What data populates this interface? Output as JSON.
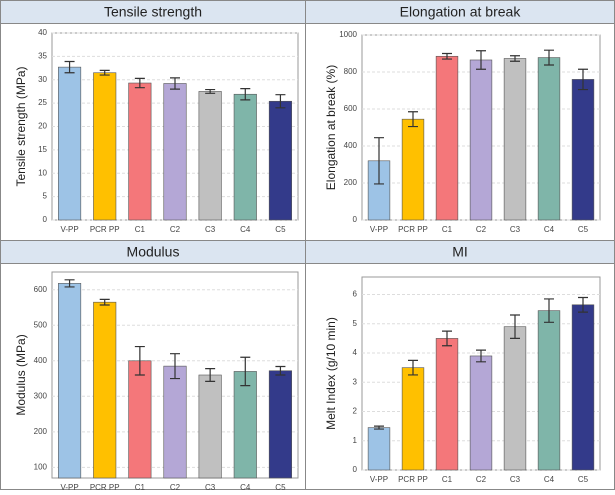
{
  "chart_data": [
    {
      "type": "bar",
      "title": "Tensile strength",
      "y_label": "Tensile strength (MPa)",
      "categories": [
        "V-PP",
        "PCR PP",
        "C1",
        "C2",
        "C3",
        "C4",
        "C5"
      ],
      "values": [
        32.7,
        31.5,
        29.3,
        29.2,
        27.5,
        26.9,
        25.4
      ],
      "errors": [
        1.2,
        0.5,
        1.0,
        1.2,
        0.4,
        1.2,
        1.4
      ],
      "colors": [
        "#9dc3e6",
        "#ffc000",
        "#f4777a",
        "#b4a7d6",
        "#c0c0c0",
        "#7fb5a9",
        "#333a8a"
      ],
      "ylim": [
        0,
        40
      ],
      "yticks": [
        0,
        5,
        10,
        15,
        20,
        25,
        30,
        35,
        40
      ],
      "grid": true
    },
    {
      "type": "bar",
      "title": "Elongation at break",
      "y_label": "Elongation at break (%)",
      "categories": [
        "V-PP",
        "PCR PP",
        "C1",
        "C2",
        "C3",
        "C4",
        "C5"
      ],
      "values": [
        320,
        545,
        885,
        865,
        873,
        878,
        760
      ],
      "errors": [
        125,
        40,
        15,
        50,
        15,
        40,
        55
      ],
      "colors": [
        "#9dc3e6",
        "#ffc000",
        "#f4777a",
        "#b4a7d6",
        "#c0c0c0",
        "#7fb5a9",
        "#333a8a"
      ],
      "ylim": [
        0,
        1000
      ],
      "yticks": [
        0,
        200,
        400,
        600,
        800,
        1000
      ],
      "grid": true
    },
    {
      "type": "bar",
      "title": "Modulus",
      "y_label": "Modulus (MPa)",
      "categories": [
        "V-PP",
        "PCR PP",
        "C1",
        "C2",
        "C3",
        "C4",
        "C5"
      ],
      "values": [
        618,
        565,
        400,
        385,
        360,
        370,
        372
      ],
      "errors": [
        10,
        8,
        40,
        35,
        18,
        40,
        12
      ],
      "colors": [
        "#9dc3e6",
        "#ffc000",
        "#f4777a",
        "#b4a7d6",
        "#c0c0c0",
        "#7fb5a9",
        "#333a8a"
      ],
      "ylim": [
        70,
        650
      ],
      "yticks": [
        100,
        200,
        300,
        400,
        500,
        600
      ],
      "grid": true
    },
    {
      "type": "bar",
      "title": "MI",
      "y_label": "Melt Index (g/10 min)",
      "categories": [
        "V-PP",
        "PCR PP",
        "C1",
        "C2",
        "C3",
        "C4",
        "C5"
      ],
      "values": [
        1.45,
        3.5,
        4.5,
        3.9,
        4.9,
        5.45,
        5.65
      ],
      "errors": [
        0.05,
        0.25,
        0.25,
        0.2,
        0.4,
        0.4,
        0.25
      ],
      "colors": [
        "#9dc3e6",
        "#ffc000",
        "#f4777a",
        "#b4a7d6",
        "#c0c0c0",
        "#7fb5a9",
        "#333a8a"
      ],
      "ylim": [
        0,
        6.6
      ],
      "yticks": [
        0,
        1,
        2,
        3,
        4,
        5,
        6
      ],
      "grid": true
    }
  ]
}
